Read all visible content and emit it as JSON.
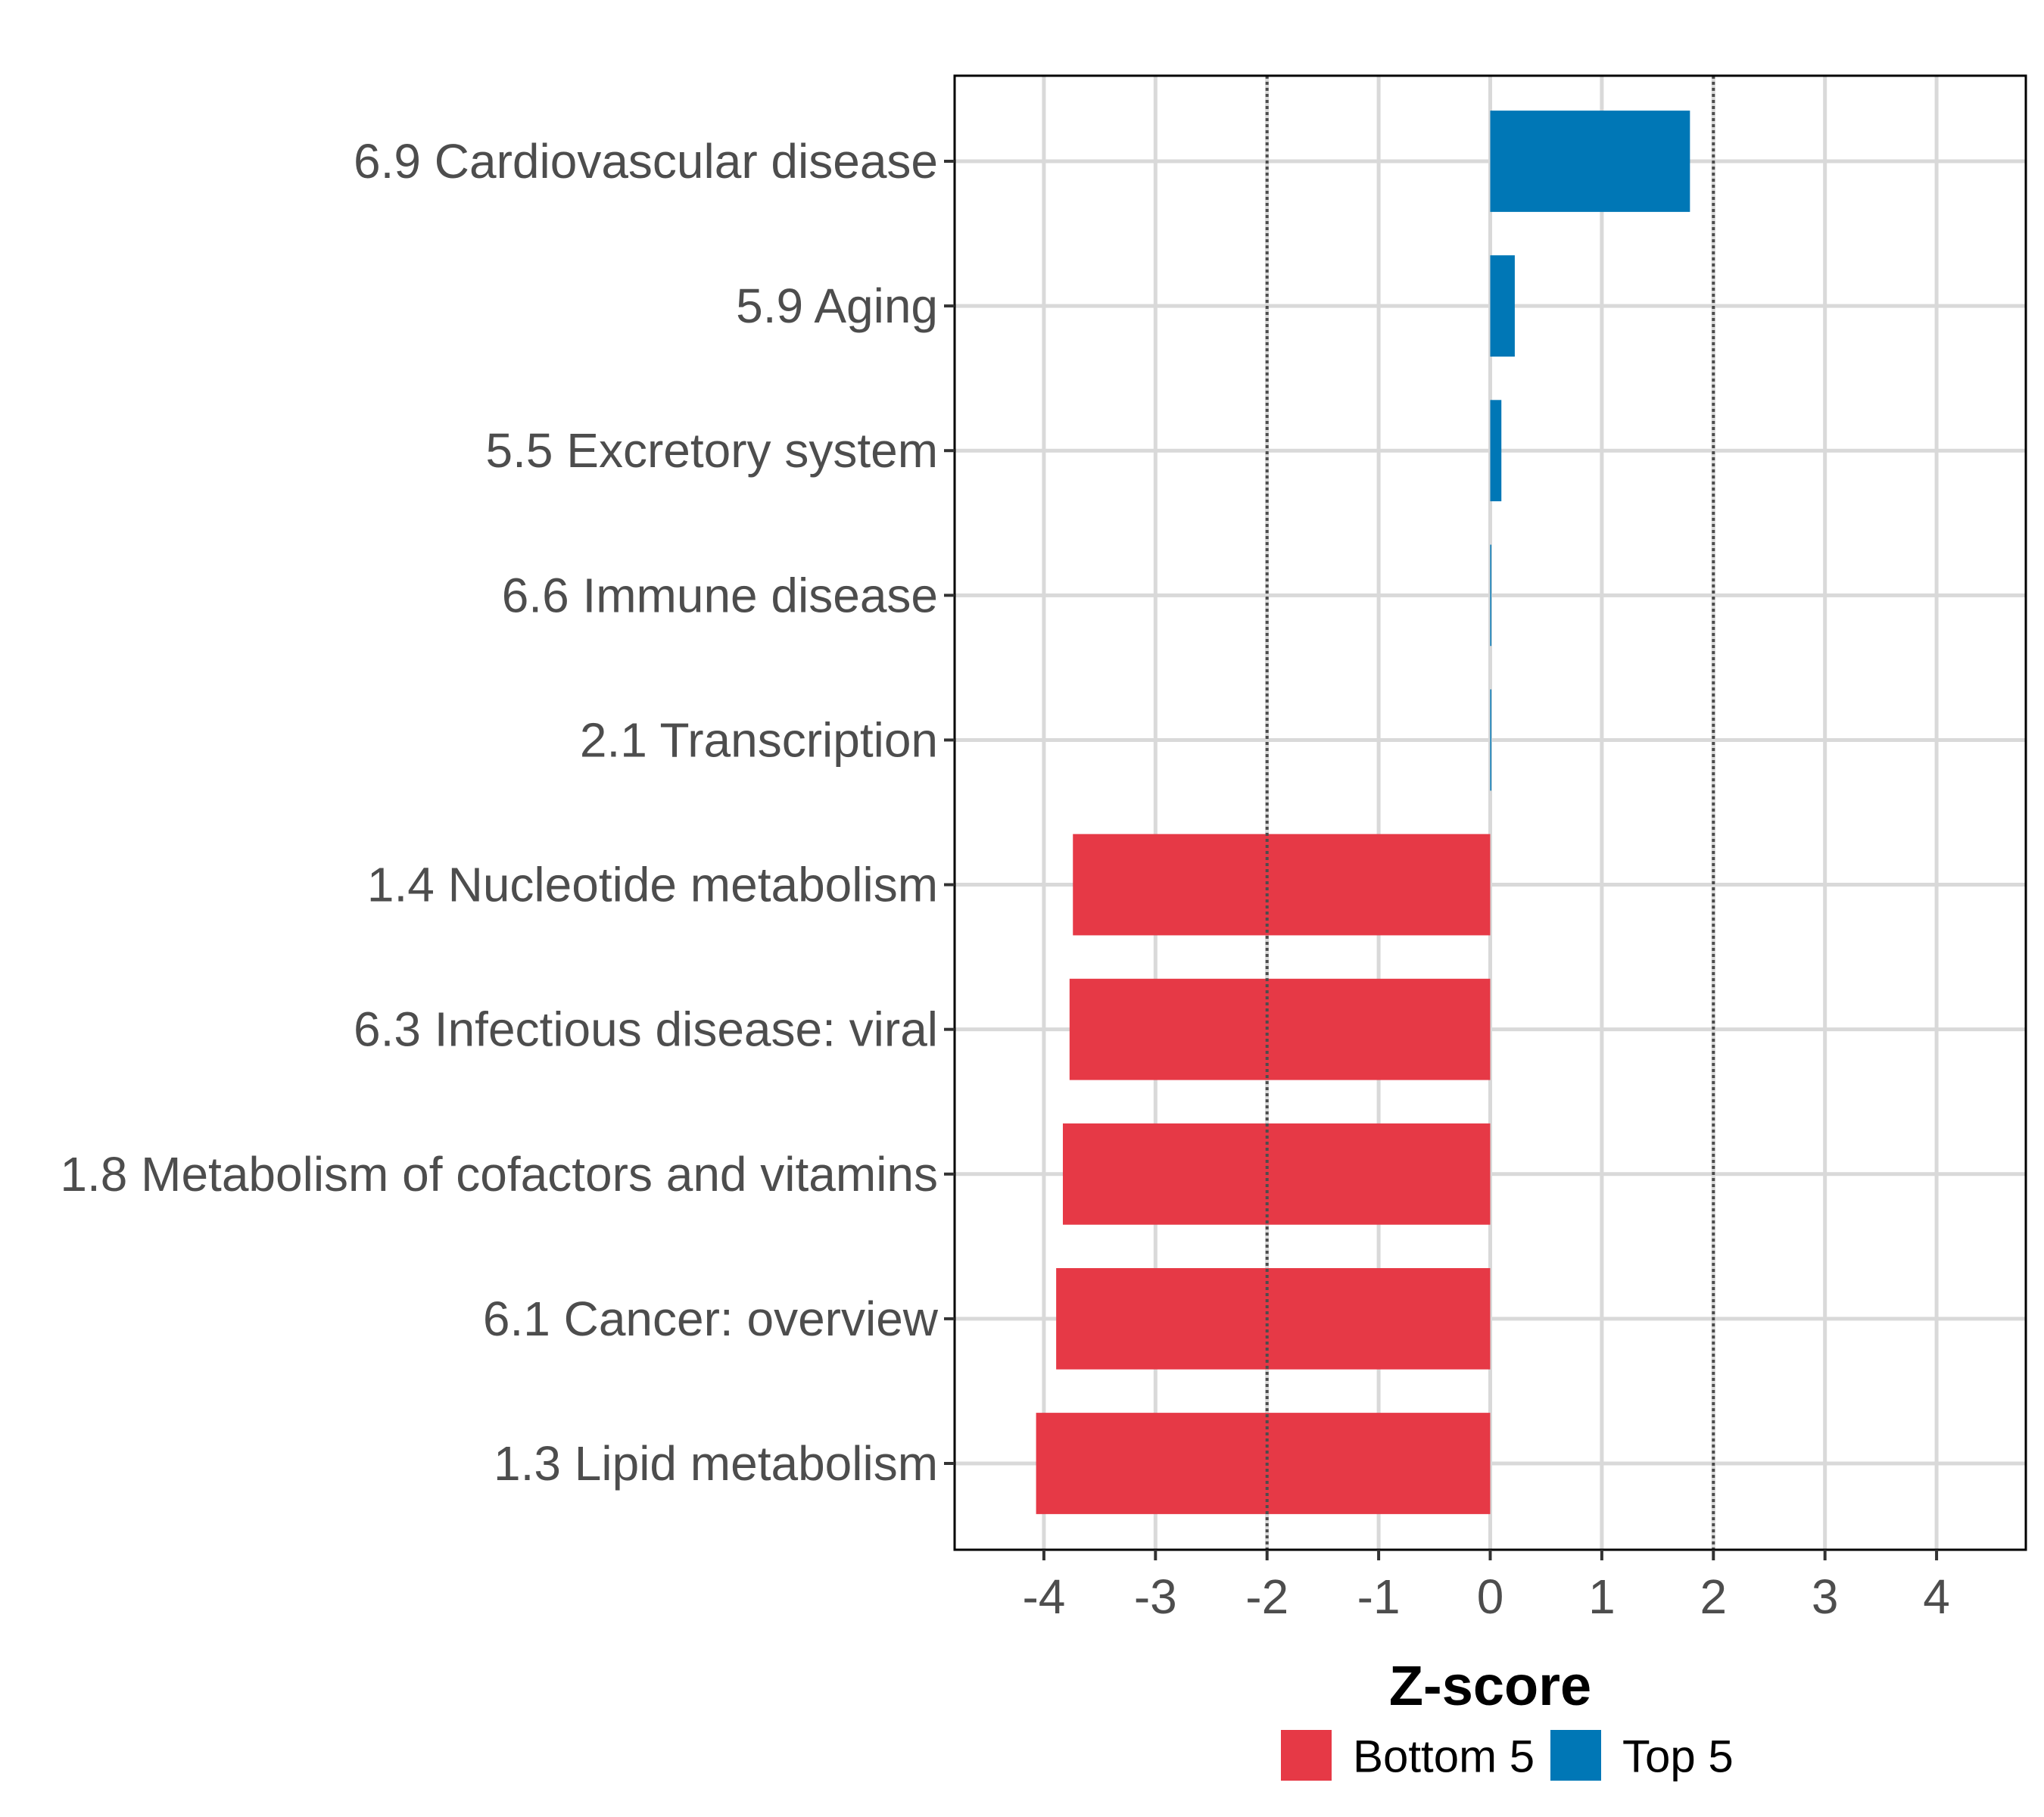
{
  "chart_data": {
    "type": "bar",
    "orientation": "horizontal",
    "title": "",
    "xlabel": "Z-score",
    "ylabel": "",
    "xlim": [
      -4.8,
      4.8
    ],
    "x_ticks": [
      -4,
      -3,
      -2,
      -1,
      0,
      1,
      2,
      3,
      4
    ],
    "x_tick_labels": [
      "-4",
      "-3",
      "-2",
      "-1",
      "0",
      "1",
      "2",
      "3",
      "4"
    ],
    "grid": true,
    "reference_lines": [
      {
        "x": -2,
        "style": "dotted"
      },
      {
        "x": 2,
        "style": "dotted"
      }
    ],
    "categories": [
      "6.9 Cardiovascular disease",
      "5.9 Aging",
      "5.5 Excretory system",
      "6.6 Immune disease",
      "2.1 Transcription",
      "1.4 Nucleotide metabolism",
      "6.3 Infectious disease: viral",
      "1.8 Metabolism of cofactors and vitamins",
      "6.1 Cancer: overview",
      "1.3 Lipid metabolism"
    ],
    "values": [
      1.79,
      0.22,
      0.1,
      0.01,
      0.01,
      -3.74,
      -3.77,
      -3.83,
      -3.89,
      -4.07
    ],
    "groups": [
      "Top 5",
      "Top 5",
      "Top 5",
      "Top 5",
      "Top 5",
      "Bottom 5",
      "Bottom 5",
      "Bottom 5",
      "Bottom 5",
      "Bottom 5"
    ],
    "legend": {
      "position": "bottom",
      "entries": [
        {
          "label": "Bottom 5",
          "color": "#e63946"
        },
        {
          "label": "Top 5",
          "color": "#0077b6"
        }
      ]
    },
    "colors": {
      "Bottom 5": "#e63946",
      "Top 5": "#0077b6",
      "grid": "#d9d9d9",
      "reference": "#4d4d4d",
      "text": "#4d4d4d"
    }
  }
}
